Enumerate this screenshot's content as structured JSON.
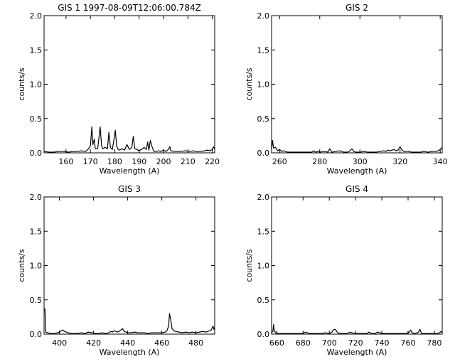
{
  "figure": {
    "colors": {
      "background": "#ffffff",
      "ink": "#000000"
    }
  },
  "chart_data": [
    {
      "type": "line",
      "title": "GIS 1 1997-08-09T12:06:00.784Z",
      "xlabel": "Wavelength (A)",
      "ylabel": "counts/s",
      "xlim": [
        151,
        221
      ],
      "ylim": [
        0,
        2.0
      ],
      "xticks": [
        160,
        170,
        180,
        190,
        200,
        210,
        220
      ],
      "yticks": [
        0.0,
        0.5,
        1.0,
        1.5,
        2.0
      ],
      "grid": false,
      "series": [
        {
          "x": [
            151,
            153,
            155,
            157,
            159,
            161,
            163,
            165,
            166,
            168,
            169,
            170,
            170.6,
            171,
            171.6,
            172,
            173,
            173.5,
            174,
            174.6,
            175.2,
            176,
            177,
            177.6,
            178.2,
            179,
            179.6,
            180.2,
            180.8,
            181.4,
            182,
            183,
            184,
            185,
            186,
            187,
            187.6,
            188.2,
            189,
            190,
            191,
            192,
            193,
            193.5,
            194,
            194.6,
            195.2,
            196,
            197,
            198,
            199,
            200,
            201,
            202,
            202.6,
            203,
            205,
            207,
            209,
            211,
            212,
            213,
            215,
            217,
            218,
            219,
            220,
            220.5,
            221
          ],
          "y": [
            0.02,
            0.01,
            0.01,
            0.02,
            0.02,
            0.01,
            0.02,
            0.02,
            0.03,
            0.02,
            0.05,
            0.1,
            0.38,
            0.12,
            0.2,
            0.06,
            0.06,
            0.22,
            0.38,
            0.1,
            0.06,
            0.08,
            0.06,
            0.3,
            0.08,
            0.05,
            0.18,
            0.33,
            0.1,
            0.05,
            0.04,
            0.06,
            0.04,
            0.12,
            0.05,
            0.08,
            0.24,
            0.06,
            0.05,
            0.03,
            0.05,
            0.08,
            0.05,
            0.16,
            0.04,
            0.18,
            0.1,
            0.02,
            0.02,
            0.03,
            0.02,
            0.04,
            0.02,
            0.05,
            0.09,
            0.03,
            0.02,
            0.02,
            0.03,
            0.02,
            0.03,
            0.02,
            0.02,
            0.03,
            0.04,
            0.03,
            0.05,
            0.09,
            0.05
          ]
        }
      ]
    },
    {
      "type": "line",
      "title": "GIS 2",
      "xlabel": "Wavelength (A)",
      "ylabel": "counts/s",
      "xlim": [
        256,
        341
      ],
      "ylim": [
        0,
        2.0
      ],
      "xticks": [
        260,
        280,
        300,
        320,
        340
      ],
      "yticks": [
        0.0,
        0.5,
        1.0,
        1.5,
        2.0
      ],
      "grid": false,
      "series": [
        {
          "x": [
            256,
            256.5,
            257,
            258,
            259,
            260,
            261,
            262,
            264,
            266,
            268,
            270,
            272,
            274,
            276,
            277,
            278,
            279,
            280,
            282,
            283,
            284,
            285,
            286,
            288,
            290,
            292,
            294,
            295,
            296,
            297,
            298,
            300,
            302,
            304,
            306,
            308,
            310,
            312,
            313,
            314,
            315,
            316,
            317,
            318,
            319,
            320,
            321,
            322,
            324,
            326,
            328,
            330,
            332,
            334,
            336,
            338,
            339,
            340,
            341
          ],
          "y": [
            0.05,
            0.18,
            0.07,
            0.08,
            0.03,
            0.05,
            0.02,
            0.03,
            0.01,
            0.01,
            0.01,
            0.01,
            0.01,
            0.01,
            0.01,
            0.03,
            0.01,
            0.02,
            0.01,
            0.02,
            0.02,
            0.01,
            0.06,
            0.01,
            0.02,
            0.03,
            0.01,
            0.01,
            0.03,
            0.06,
            0.02,
            0.01,
            0.01,
            0.02,
            0.01,
            0.01,
            0.01,
            0.02,
            0.03,
            0.02,
            0.04,
            0.03,
            0.04,
            0.05,
            0.03,
            0.04,
            0.09,
            0.04,
            0.02,
            0.02,
            0.01,
            0.01,
            0.01,
            0.02,
            0.01,
            0.02,
            0.02,
            0.03,
            0.05,
            0.08
          ]
        }
      ]
    },
    {
      "type": "line",
      "title": "GIS 3",
      "xlabel": "Wavelength (A)",
      "ylabel": "counts/s",
      "xlim": [
        391,
        491
      ],
      "ylim": [
        0,
        2.0
      ],
      "xticks": [
        400,
        420,
        440,
        460,
        480
      ],
      "yticks": [
        0.0,
        0.5,
        1.0,
        1.5,
        2.0
      ],
      "grid": false,
      "series": [
        {
          "x": [
            391,
            391.5,
            392,
            393,
            395,
            397,
            399,
            400,
            401,
            402,
            403,
            404,
            405,
            407,
            410,
            413,
            415,
            416,
            417,
            419,
            421,
            423,
            425,
            427,
            429,
            430,
            431,
            432,
            434,
            435,
            436,
            437,
            438,
            440,
            442,
            444,
            446,
            448,
            450,
            452,
            454,
            456,
            458,
            460,
            462,
            463,
            464,
            464.5,
            465,
            466,
            467,
            468,
            470,
            472,
            474,
            476,
            478,
            480,
            482,
            484,
            486,
            488,
            489,
            490,
            490.5,
            491
          ],
          "y": [
            0.37,
            0.37,
            0.03,
            0.02,
            0.01,
            0.01,
            0.02,
            0.03,
            0.05,
            0.06,
            0.04,
            0.03,
            0.02,
            0.01,
            0.01,
            0.02,
            0.01,
            0.02,
            0.03,
            0.02,
            0.01,
            0.01,
            0.02,
            0.01,
            0.02,
            0.04,
            0.03,
            0.05,
            0.03,
            0.04,
            0.06,
            0.08,
            0.04,
            0.02,
            0.02,
            0.03,
            0.02,
            0.02,
            0.02,
            0.01,
            0.02,
            0.02,
            0.02,
            0.02,
            0.03,
            0.05,
            0.12,
            0.3,
            0.24,
            0.08,
            0.05,
            0.04,
            0.03,
            0.02,
            0.03,
            0.02,
            0.03,
            0.02,
            0.03,
            0.04,
            0.03,
            0.05,
            0.06,
            0.12,
            0.07,
            0.1
          ]
        }
      ]
    },
    {
      "type": "line",
      "title": "GIS 4",
      "xlabel": "Wavelength (A)",
      "ylabel": "counts/s",
      "xlim": [
        656,
        786
      ],
      "ylim": [
        0,
        2.0
      ],
      "xticks": [
        660,
        680,
        700,
        720,
        740,
        760,
        780
      ],
      "yticks": [
        0.0,
        0.5,
        1.0,
        1.5,
        2.0
      ],
      "grid": false,
      "series": [
        {
          "x": [
            656,
            657,
            657.5,
            658,
            659,
            661,
            664,
            667,
            670,
            673,
            676,
            679,
            681,
            682,
            683,
            685,
            688,
            691,
            694,
            697,
            700,
            702,
            703,
            704,
            705,
            706,
            707,
            710,
            713,
            715,
            716,
            717,
            720,
            723,
            726,
            729,
            730,
            731,
            733,
            735,
            736,
            737,
            740,
            743,
            746,
            749,
            752,
            755,
            758,
            760,
            761,
            762,
            763,
            765,
            767,
            768,
            769,
            770,
            771,
            773,
            776,
            779,
            782,
            784,
            785,
            786
          ],
          "y": [
            0.02,
            0.04,
            0.14,
            0.06,
            0.02,
            0.01,
            0.01,
            0.01,
            0.01,
            0.01,
            0.01,
            0.01,
            0.02,
            0.03,
            0.02,
            0.01,
            0.01,
            0.01,
            0.01,
            0.02,
            0.01,
            0.03,
            0.06,
            0.07,
            0.06,
            0.03,
            0.01,
            0.01,
            0.01,
            0.02,
            0.03,
            0.02,
            0.01,
            0.01,
            0.01,
            0.01,
            0.03,
            0.02,
            0.01,
            0.01,
            0.02,
            0.03,
            0.01,
            0.01,
            0.01,
            0.01,
            0.01,
            0.01,
            0.01,
            0.02,
            0.03,
            0.06,
            0.02,
            0.01,
            0.02,
            0.03,
            0.07,
            0.02,
            0.01,
            0.01,
            0.01,
            0.01,
            0.01,
            0.02,
            0.04,
            0.02
          ]
        }
      ]
    }
  ]
}
